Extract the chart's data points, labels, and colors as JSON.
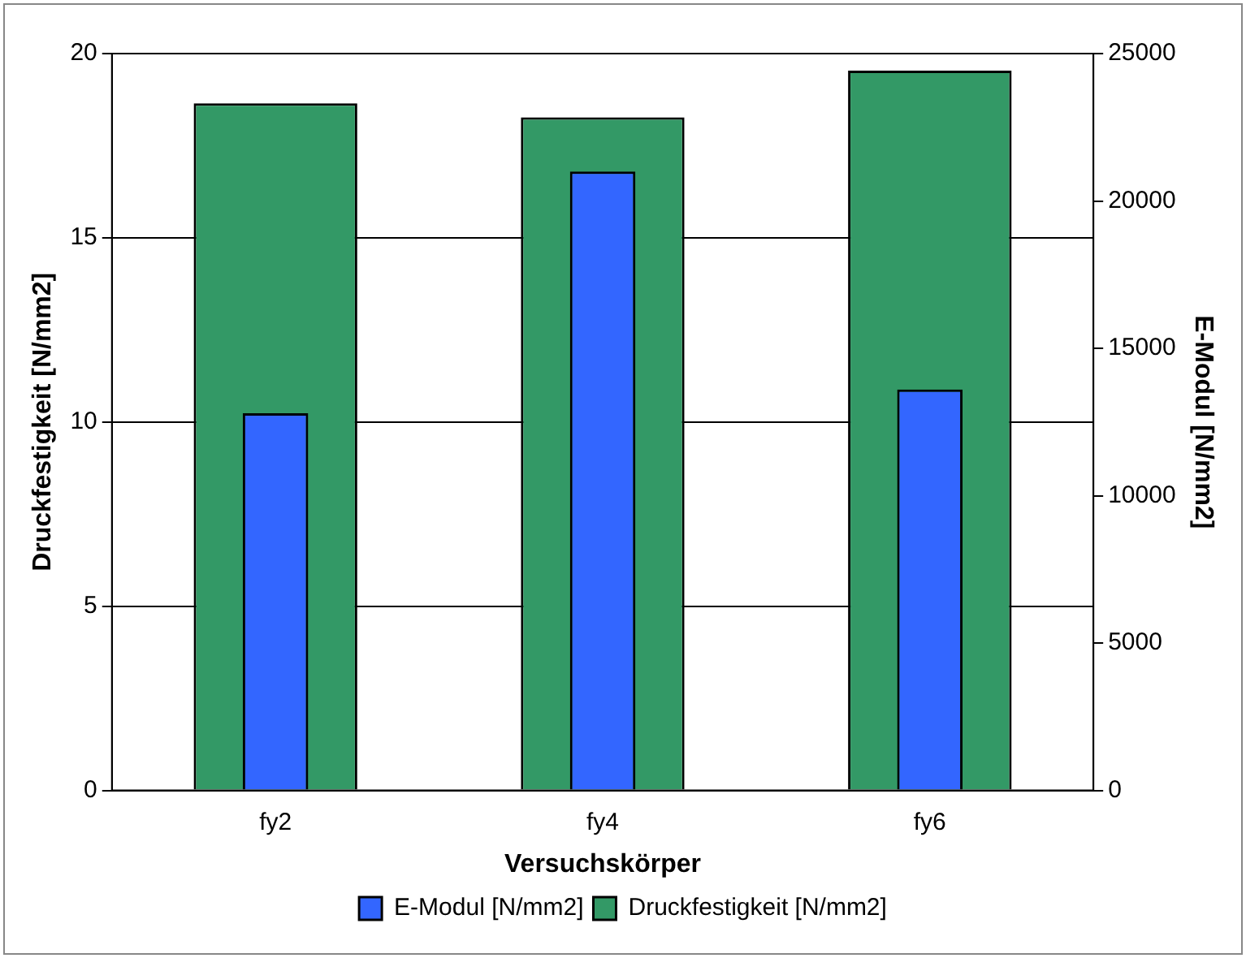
{
  "chart_data": {
    "type": "bar",
    "xlabel": "Versuchskörper",
    "ylabel": "Druckfestigkeit [N/mm2]",
    "y2label": "E-Modul [N/mm2]",
    "categories": [
      "fy2",
      "fy4",
      "fy6"
    ],
    "series": [
      {
        "name": "Druckfestigkeit [N/mm2]",
        "color": "#339966",
        "values": [
          18.65,
          18.27,
          19.54
        ]
      },
      {
        "name": "E-Modul [N/mm2]",
        "color": "#3366ff",
        "values": [
          12800,
          21000,
          13600
        ],
        "axis": "y2"
      }
    ],
    "ylim": [
      0,
      20
    ],
    "yticks": [
      0,
      5,
      10,
      15,
      20
    ],
    "y2lim": [
      0,
      25000
    ],
    "y2ticks": [
      0,
      5000,
      10000,
      15000,
      20000,
      25000
    ],
    "grid": "y",
    "legend": "bottom"
  }
}
